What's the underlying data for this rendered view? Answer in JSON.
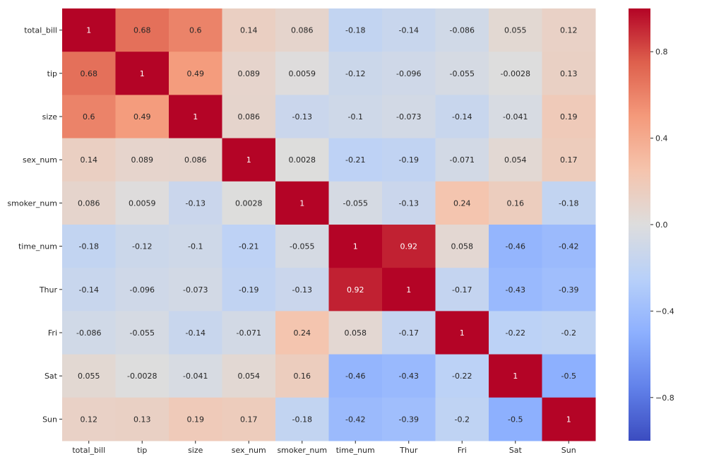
{
  "chart_data": {
    "type": "heatmap",
    "title": "",
    "xlabel": "",
    "ylabel": "",
    "colormap": "coolwarm",
    "vmin": -1,
    "vmax": 1,
    "annotated": true,
    "legend": "colorbar-right",
    "x_categories": [
      "total_bill",
      "tip",
      "size",
      "sex_num",
      "smoker_num",
      "time_num",
      "Thur",
      "Fri",
      "Sat",
      "Sun"
    ],
    "y_categories": [
      "total_bill",
      "tip",
      "size",
      "sex_num",
      "smoker_num",
      "time_num",
      "Thur",
      "Fri",
      "Sat",
      "Sun"
    ],
    "values": [
      [
        1,
        0.68,
        0.6,
        0.14,
        0.086,
        -0.18,
        -0.14,
        -0.086,
        0.055,
        0.12
      ],
      [
        0.68,
        1,
        0.49,
        0.089,
        0.0059,
        -0.12,
        -0.096,
        -0.055,
        -0.0028,
        0.13
      ],
      [
        0.6,
        0.49,
        1,
        0.086,
        -0.13,
        -0.1,
        -0.073,
        -0.14,
        -0.041,
        0.19
      ],
      [
        0.14,
        0.089,
        0.086,
        1,
        0.0028,
        -0.21,
        -0.19,
        -0.071,
        0.054,
        0.17
      ],
      [
        0.086,
        0.0059,
        -0.13,
        0.0028,
        1,
        -0.055,
        -0.13,
        0.24,
        0.16,
        -0.18
      ],
      [
        -0.18,
        -0.12,
        -0.1,
        -0.21,
        -0.055,
        1,
        0.92,
        0.058,
        -0.46,
        -0.42
      ],
      [
        -0.14,
        -0.096,
        -0.073,
        -0.19,
        -0.13,
        0.92,
        1,
        -0.17,
        -0.43,
        -0.39
      ],
      [
        -0.086,
        -0.055,
        -0.14,
        -0.071,
        0.24,
        0.058,
        -0.17,
        1,
        -0.22,
        -0.2
      ],
      [
        0.055,
        -0.0028,
        -0.041,
        0.054,
        0.16,
        -0.46,
        -0.43,
        -0.22,
        1,
        -0.5
      ],
      [
        0.12,
        0.13,
        0.19,
        0.17,
        -0.18,
        -0.42,
        -0.39,
        -0.2,
        -0.5,
        1
      ]
    ],
    "colorbar_ticks": [
      0.8,
      0.4,
      0.0,
      -0.4,
      -0.8
    ],
    "colorbar_tick_labels": [
      "0.8",
      "0.4",
      "0.0",
      "−0.4",
      "−0.8"
    ]
  }
}
